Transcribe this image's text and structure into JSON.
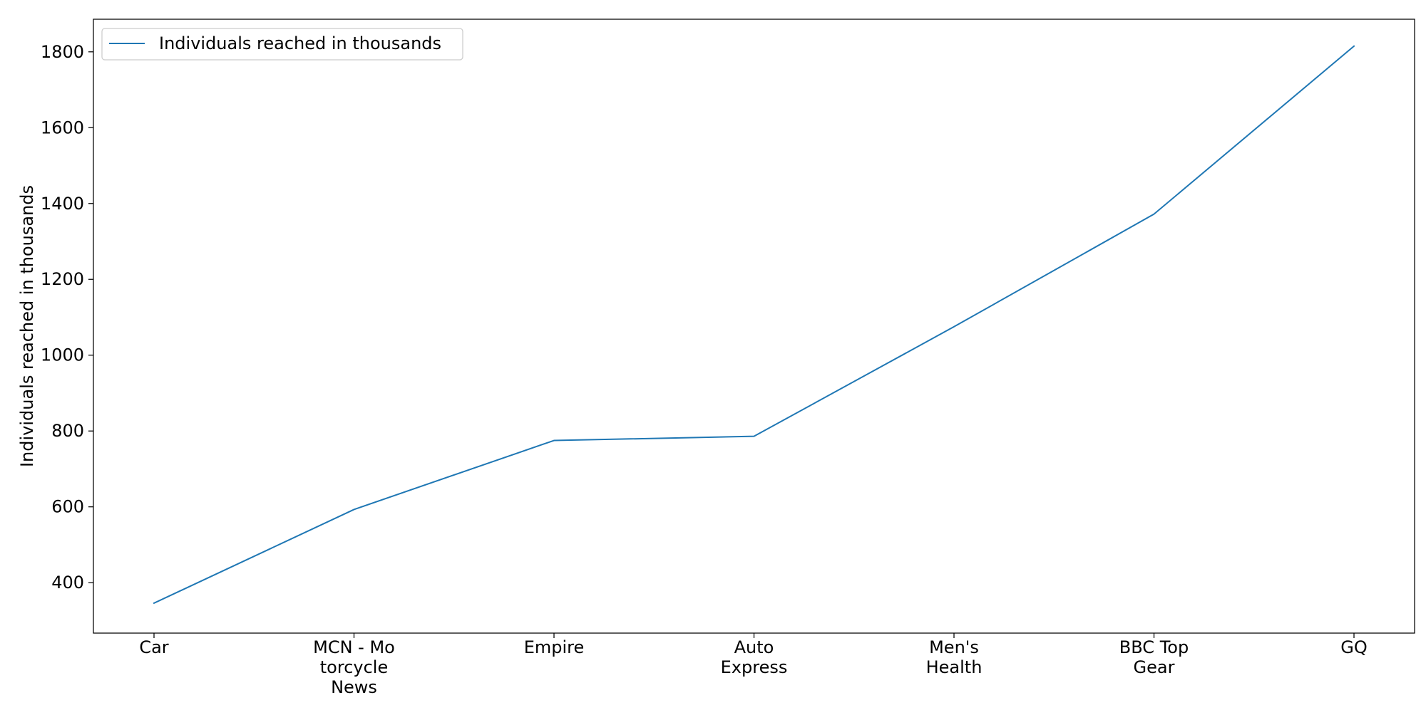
{
  "chart_data": {
    "type": "line",
    "categories": [
      [
        "Car"
      ],
      [
        "MCN - Mo",
        "torcycle",
        "News"
      ],
      [
        "Empire"
      ],
      [
        "Auto",
        "Express"
      ],
      [
        "Men's",
        "Health"
      ],
      [
        "BBC Top",
        "Gear"
      ],
      [
        "GQ"
      ]
    ],
    "series": [
      {
        "name": "Individuals reached in thousands",
        "values": [
          346,
          593,
          775,
          786,
          1075,
          1372,
          1815
        ],
        "color": "#1f77b4"
      }
    ],
    "xlabel": "",
    "ylabel": "Individuals reached in thousands",
    "ylim": [
      267,
      1886
    ],
    "yticks": [
      400,
      600,
      800,
      1000,
      1200,
      1400,
      1600,
      1800
    ],
    "legend_position": "upper-left",
    "grid": false
  }
}
